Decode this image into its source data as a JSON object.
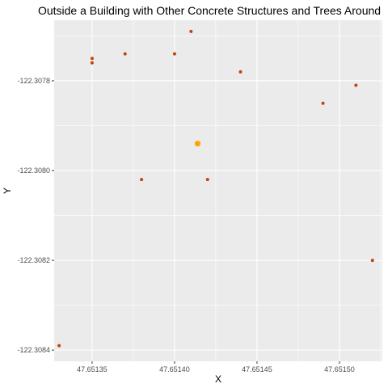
{
  "chart_data": {
    "type": "scatter",
    "title": "Outside a Building with Other Concrete Structures and Trees Around",
    "xlabel": "X",
    "ylabel": "Y",
    "xlim": [
      47.651327,
      47.651526
    ],
    "ylim": [
      -122.308425,
      -122.307665
    ],
    "x_ticks": [
      {
        "value": 47.65135,
        "label": "47.65135"
      },
      {
        "value": 47.6514,
        "label": "47.65140"
      },
      {
        "value": 47.65145,
        "label": "47.65145"
      },
      {
        "value": 47.6515,
        "label": "47.65150"
      }
    ],
    "y_ticks": [
      {
        "value": -122.3078,
        "label": "-122.3078"
      },
      {
        "value": -122.308,
        "label": "-122.3080"
      },
      {
        "value": -122.3082,
        "label": "-122.3082"
      },
      {
        "value": -122.3084,
        "label": "-122.3084"
      }
    ],
    "grid": true,
    "legend": "none",
    "colors": {
      "panel": "#ebebeb",
      "grid": "#ffffff",
      "point": "#c1440e",
      "highlight": "#ffa500"
    },
    "series": [
      {
        "points": [
          {
            "x": 47.65133,
            "y": -122.30839
          },
          {
            "x": 47.65135,
            "y": -122.30775
          },
          {
            "x": 47.65135,
            "y": -122.30776
          },
          {
            "x": 47.65137,
            "y": -122.30774
          },
          {
            "x": 47.65138,
            "y": -122.30802
          },
          {
            "x": 47.6514,
            "y": -122.30774
          },
          {
            "x": 47.65141,
            "y": -122.30769
          },
          {
            "x": 47.65142,
            "y": -122.30802
          },
          {
            "x": 47.65144,
            "y": -122.30778
          },
          {
            "x": 47.65149,
            "y": -122.30785
          },
          {
            "x": 47.65151,
            "y": -122.30781
          },
          {
            "x": 47.65152,
            "y": -122.3082
          }
        ]
      },
      {
        "highlight": true,
        "points": [
          {
            "x": 47.651414,
            "y": -122.30794
          }
        ]
      }
    ]
  }
}
